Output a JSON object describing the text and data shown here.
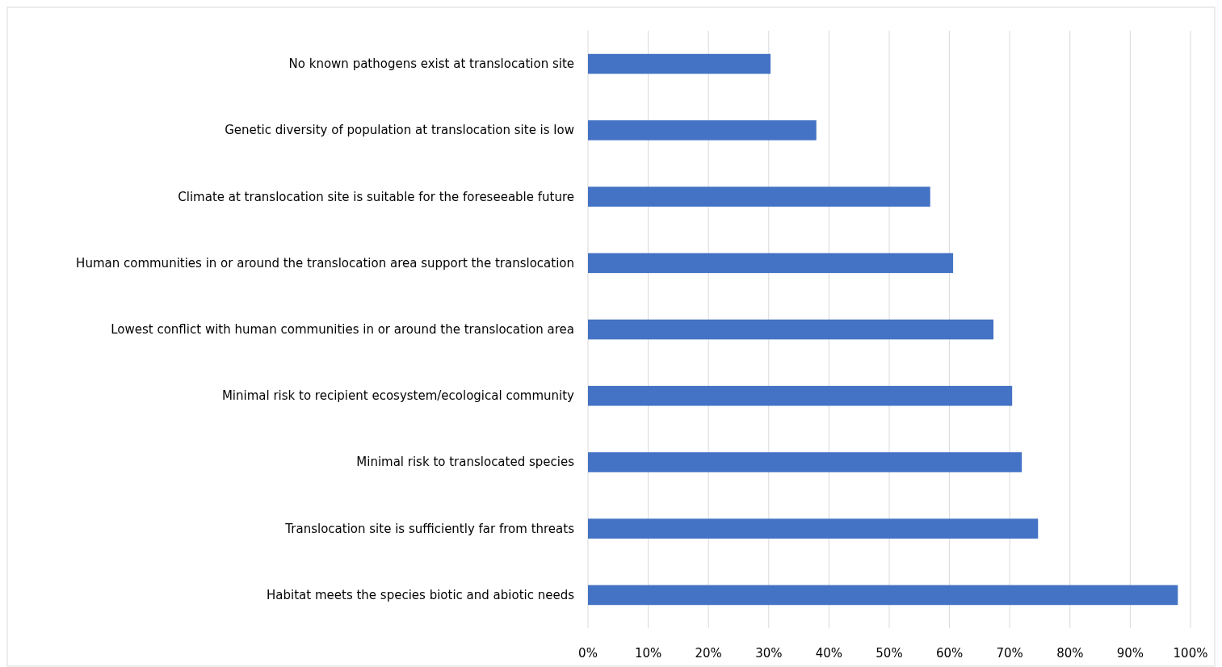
{
  "chart_data": {
    "type": "bar",
    "orientation": "horizontal",
    "categories": [
      "No known pathogens exist at translocation site",
      "Genetic diversity of population at translocation site is low",
      "Climate at translocation site is suitable for the foreseeable future",
      "Human communities in or around the translocation area support the translocation",
      "Lowest conflict with human communities in or around the translocation area",
      "Minimal risk to recipient ecosystem/ecological community",
      "Minimal risk to translocated species",
      "Translocation site is sufficiently far from threats",
      "Habitat meets the species biotic and abiotic needs"
    ],
    "values": [
      30.3,
      37.9,
      56.8,
      60.6,
      67.3,
      70.4,
      72,
      74.7,
      97.9
    ],
    "color": "#4472c4",
    "xlim": [
      0,
      100
    ],
    "xticks": [
      {
        "value": 0,
        "label": "0%"
      },
      {
        "value": 10,
        "label": "10%"
      },
      {
        "value": 20,
        "label": "20%"
      },
      {
        "value": 30,
        "label": "30%"
      },
      {
        "value": 40,
        "label": "40%"
      },
      {
        "value": 50,
        "label": "50%"
      },
      {
        "value": 60,
        "label": "60%"
      },
      {
        "value": 70,
        "label": "70%"
      },
      {
        "value": 80,
        "label": "80%"
      },
      {
        "value": 90,
        "label": "90%"
      },
      {
        "value": 100,
        "label": "100%"
      }
    ],
    "grid": "x"
  }
}
